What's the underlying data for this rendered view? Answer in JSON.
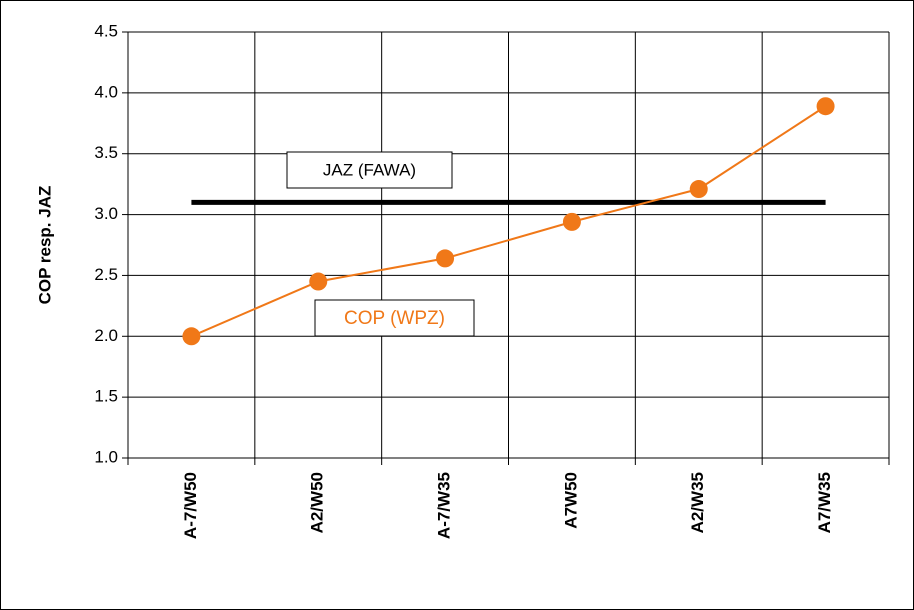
{
  "chart_data": {
    "type": "line",
    "y_label": "COP resp. JAZ",
    "categories": [
      "A-7/W50",
      "A2/W50",
      "A-7/W35",
      "A7W50",
      "A2/W35",
      "A7/W35"
    ],
    "series": [
      {
        "name": "COP (WPZ)",
        "color": "#f07818",
        "markers": true,
        "values": [
          2.0,
          2.45,
          2.64,
          2.94,
          3.21,
          3.89
        ]
      },
      {
        "name": "JAZ (FAWA)",
        "color": "#000000",
        "markers": false,
        "values": [
          3.1,
          3.1,
          3.1,
          3.1,
          3.1,
          3.1
        ]
      }
    ],
    "ylim": [
      1.0,
      4.5
    ],
    "yticks": [
      {
        "value": 1.0,
        "label": "1.0"
      },
      1.5,
      {
        "value": 2.0,
        "label": "2.0"
      },
      2.5,
      {
        "value": 3.0,
        "label": "3.0"
      },
      3.5,
      {
        "value": 4.0,
        "label": "4.0"
      },
      4.5
    ],
    "grid": true
  }
}
